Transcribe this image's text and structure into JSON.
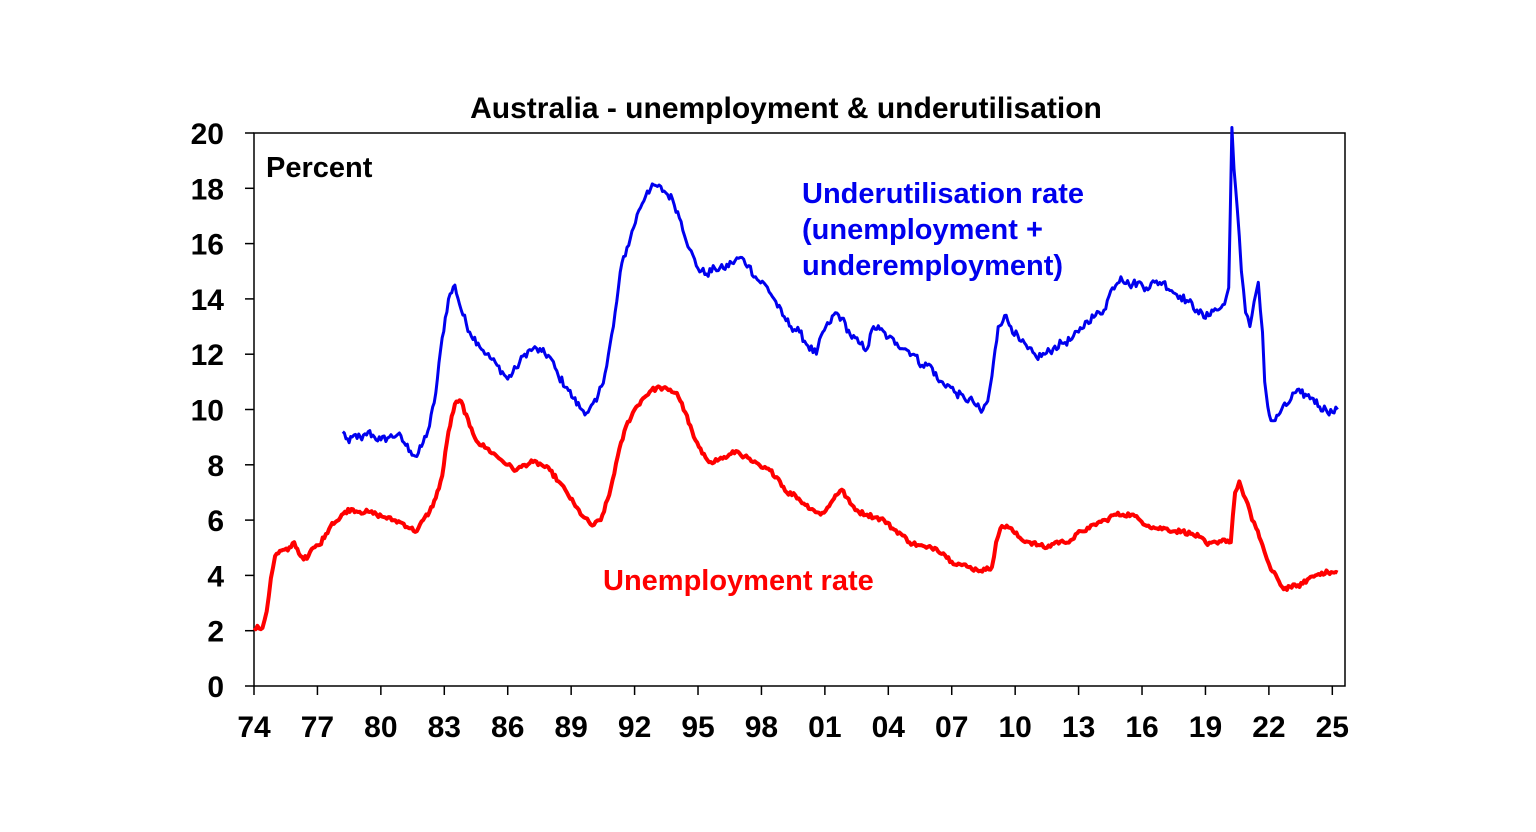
{
  "chart_data": {
    "type": "line",
    "title": "Australia - unemployment & underutilisation",
    "ylabel": "Percent",
    "xlabel": "",
    "ylim": [
      0,
      20
    ],
    "xlim": [
      1974,
      2025.6
    ],
    "grid": false,
    "y_ticks": [
      "0",
      "2",
      "4",
      "6",
      "8",
      "10",
      "12",
      "14",
      "16",
      "18",
      "20"
    ],
    "x_ticks": [
      {
        "value": 1974,
        "label": "74"
      },
      {
        "value": 1977,
        "label": "77"
      },
      {
        "value": 1980,
        "label": "80"
      },
      {
        "value": 1983,
        "label": "83"
      },
      {
        "value": 1986,
        "label": "86"
      },
      {
        "value": 1989,
        "label": "89"
      },
      {
        "value": 1992,
        "label": "92"
      },
      {
        "value": 1995,
        "label": "95"
      },
      {
        "value": 1998,
        "label": "98"
      },
      {
        "value": 2001,
        "label": "01"
      },
      {
        "value": 2004,
        "label": "04"
      },
      {
        "value": 2007,
        "label": "07"
      },
      {
        "value": 2010,
        "label": "10"
      },
      {
        "value": 2013,
        "label": "13"
      },
      {
        "value": 2016,
        "label": "16"
      },
      {
        "value": 2019,
        "label": "19"
      },
      {
        "value": 2022,
        "label": "22"
      },
      {
        "value": 2025,
        "label": "25"
      }
    ],
    "series": [
      {
        "name": "Underutilisation rate (unemployment + underemployment)",
        "label_lines": [
          "Underutilisation rate",
          "(unemployment +",
          "underemployment)"
        ],
        "color": "#0000ee",
        "x": [
          1978.2,
          1978.5,
          1978.8,
          1979.1,
          1979.4,
          1979.7,
          1980.0,
          1980.4,
          1980.8,
          1981.1,
          1981.4,
          1981.7,
          1982.0,
          1982.3,
          1982.6,
          1982.9,
          1983.2,
          1983.5,
          1983.8,
          1984.2,
          1984.6,
          1985.0,
          1985.5,
          1986.0,
          1986.4,
          1986.8,
          1987.2,
          1987.6,
          1988.0,
          1988.4,
          1988.8,
          1989.1,
          1989.5,
          1989.8,
          1990.2,
          1990.6,
          1991.0,
          1991.4,
          1991.8,
          1992.2,
          1992.6,
          1993.0,
          1993.4,
          1993.8,
          1994.2,
          1994.6,
          1995.0,
          1995.4,
          1995.8,
          1996.2,
          1996.6,
          1997.0,
          1997.4,
          1997.8,
          1998.2,
          1998.6,
          1999.0,
          1999.4,
          1999.8,
          2000.2,
          2000.6,
          2000.9,
          2001.2,
          2001.5,
          2001.8,
          2002.2,
          2002.6,
          2003.0,
          2003.3,
          2003.6,
          2004.0,
          2004.4,
          2004.8,
          2005.2,
          2005.6,
          2006.0,
          2006.4,
          2006.8,
          2007.2,
          2007.6,
          2008.0,
          2008.4,
          2008.7,
          2008.9,
          2009.2,
          2009.5,
          2009.8,
          2010.2,
          2010.6,
          2011.0,
          2011.4,
          2011.8,
          2012.2,
          2012.6,
          2013.0,
          2013.4,
          2013.8,
          2014.2,
          2014.6,
          2015.0,
          2015.4,
          2015.8,
          2016.2,
          2016.6,
          2017.0,
          2017.4,
          2017.8,
          2018.2,
          2018.6,
          2019.0,
          2019.3,
          2019.6,
          2019.9,
          2020.1,
          2020.25,
          2020.35,
          2020.5,
          2020.7,
          2020.9,
          2021.1,
          2021.3,
          2021.5,
          2021.7,
          2021.8,
          2021.95,
          2022.1,
          2022.3,
          2022.6,
          2022.9,
          2023.2,
          2023.5,
          2023.8,
          2024.1,
          2024.4,
          2024.7,
          2025.0,
          2025.25
        ],
        "values": [
          9.2,
          8.8,
          9.1,
          8.9,
          9.2,
          9.0,
          8.9,
          9.0,
          9.1,
          8.8,
          8.5,
          8.3,
          8.8,
          9.4,
          10.6,
          12.6,
          14.0,
          14.5,
          13.6,
          12.8,
          12.4,
          12.0,
          11.6,
          11.1,
          11.5,
          12.0,
          12.2,
          12.1,
          11.9,
          11.2,
          10.8,
          10.4,
          10.0,
          9.9,
          10.3,
          11.3,
          13.0,
          15.3,
          16.2,
          17.2,
          17.9,
          18.1,
          17.9,
          17.6,
          16.8,
          15.8,
          15.1,
          14.9,
          15.1,
          15.1,
          15.3,
          15.5,
          15.2,
          14.7,
          14.5,
          14.0,
          13.4,
          13.0,
          12.8,
          12.3,
          12.0,
          12.8,
          13.1,
          13.5,
          13.3,
          12.7,
          12.4,
          12.2,
          13.0,
          12.9,
          12.6,
          12.4,
          12.2,
          12.0,
          11.6,
          11.6,
          11.0,
          10.9,
          10.6,
          10.4,
          10.3,
          9.9,
          10.3,
          11.2,
          13.0,
          13.4,
          13.0,
          12.5,
          12.2,
          11.9,
          12.0,
          12.2,
          12.4,
          12.5,
          12.8,
          13.2,
          13.4,
          13.6,
          14.4,
          14.8,
          14.5,
          14.6,
          14.4,
          14.6,
          14.6,
          14.3,
          14.1,
          13.9,
          13.6,
          13.3,
          13.6,
          13.6,
          13.8,
          14.4,
          20.2,
          18.7,
          17.3,
          15.0,
          13.5,
          13.0,
          13.9,
          14.6,
          12.8,
          11.0,
          10.1,
          9.6,
          9.6,
          10.0,
          10.2,
          10.6,
          10.6,
          10.5,
          10.4,
          10.1,
          10.0,
          9.9,
          10.0
        ],
        "noise": 0.15
      },
      {
        "name": "Unemployment rate",
        "label_lines": [
          "Unemployment rate"
        ],
        "color": "#ff0000",
        "x": [
          1974.0,
          1974.4,
          1974.6,
          1974.8,
          1975.0,
          1975.3,
          1975.6,
          1975.9,
          1976.2,
          1976.5,
          1976.8,
          1977.1,
          1977.4,
          1977.7,
          1978.0,
          1978.3,
          1978.6,
          1979.0,
          1979.4,
          1979.8,
          1980.2,
          1980.6,
          1981.0,
          1981.4,
          1981.7,
          1982.0,
          1982.3,
          1982.6,
          1982.9,
          1983.2,
          1983.5,
          1983.8,
          1984.2,
          1984.6,
          1985.0,
          1985.5,
          1986.0,
          1986.4,
          1986.8,
          1987.2,
          1987.6,
          1988.0,
          1988.4,
          1988.8,
          1989.2,
          1989.6,
          1990.0,
          1990.4,
          1990.8,
          1991.2,
          1991.6,
          1992.0,
          1992.4,
          1992.8,
          1993.2,
          1993.6,
          1994.0,
          1994.4,
          1994.8,
          1995.2,
          1995.6,
          1996.0,
          1996.4,
          1996.8,
          1997.2,
          1997.6,
          1998.0,
          1998.4,
          1998.8,
          1999.2,
          1999.6,
          2000.0,
          2000.4,
          2000.8,
          2001.2,
          2001.5,
          2001.8,
          2002.2,
          2002.6,
          2003.0,
          2003.4,
          2003.8,
          2004.2,
          2004.6,
          2005.0,
          2005.4,
          2005.8,
          2006.2,
          2006.6,
          2007.0,
          2007.4,
          2007.8,
          2008.2,
          2008.6,
          2008.9,
          2009.1,
          2009.3,
          2009.6,
          2009.9,
          2010.3,
          2010.7,
          2011.1,
          2011.5,
          2011.9,
          2012.3,
          2012.7,
          2013.1,
          2013.5,
          2013.9,
          2014.3,
          2014.7,
          2015.1,
          2015.5,
          2015.9,
          2016.3,
          2016.7,
          2017.1,
          2017.5,
          2017.9,
          2018.3,
          2018.7,
          2019.1,
          2019.5,
          2019.9,
          2020.2,
          2020.4,
          2020.6,
          2020.8,
          2021.0,
          2021.2,
          2021.4,
          2021.7,
          2021.9,
          2022.1,
          2022.4,
          2022.7,
          2023.0,
          2023.3,
          2023.6,
          2023.9,
          2024.2,
          2024.5,
          2024.8,
          2025.1,
          2025.25
        ],
        "values": [
          2.1,
          2.1,
          2.7,
          3.9,
          4.7,
          4.9,
          4.9,
          5.2,
          4.7,
          4.6,
          5.0,
          5.1,
          5.5,
          5.9,
          6.0,
          6.3,
          6.4,
          6.3,
          6.3,
          6.2,
          6.1,
          6.0,
          5.9,
          5.7,
          5.6,
          6.0,
          6.3,
          6.8,
          7.6,
          9.2,
          10.2,
          10.3,
          9.4,
          8.8,
          8.6,
          8.3,
          8.0,
          7.8,
          8.0,
          8.1,
          8.0,
          7.8,
          7.4,
          7.0,
          6.5,
          6.1,
          5.8,
          6.0,
          6.9,
          8.3,
          9.4,
          10.0,
          10.4,
          10.7,
          10.8,
          10.7,
          10.6,
          9.9,
          9.0,
          8.4,
          8.1,
          8.2,
          8.3,
          8.5,
          8.3,
          8.1,
          7.9,
          7.8,
          7.5,
          7.0,
          6.9,
          6.6,
          6.4,
          6.2,
          6.5,
          6.9,
          7.1,
          6.6,
          6.3,
          6.2,
          6.1,
          6.0,
          5.7,
          5.5,
          5.2,
          5.1,
          5.0,
          5.0,
          4.8,
          4.5,
          4.4,
          4.3,
          4.2,
          4.2,
          4.3,
          5.2,
          5.7,
          5.8,
          5.6,
          5.3,
          5.2,
          5.1,
          5.0,
          5.2,
          5.2,
          5.3,
          5.6,
          5.7,
          5.9,
          6.0,
          6.2,
          6.2,
          6.2,
          6.0,
          5.8,
          5.7,
          5.7,
          5.6,
          5.6,
          5.5,
          5.4,
          5.1,
          5.2,
          5.3,
          5.2,
          7.0,
          7.4,
          6.9,
          6.6,
          6.0,
          5.7,
          5.1,
          4.6,
          4.2,
          3.9,
          3.5,
          3.6,
          3.6,
          3.7,
          3.9,
          4.0,
          4.1,
          4.1,
          4.1,
          4.1
        ],
        "noise": 0.08
      }
    ]
  }
}
